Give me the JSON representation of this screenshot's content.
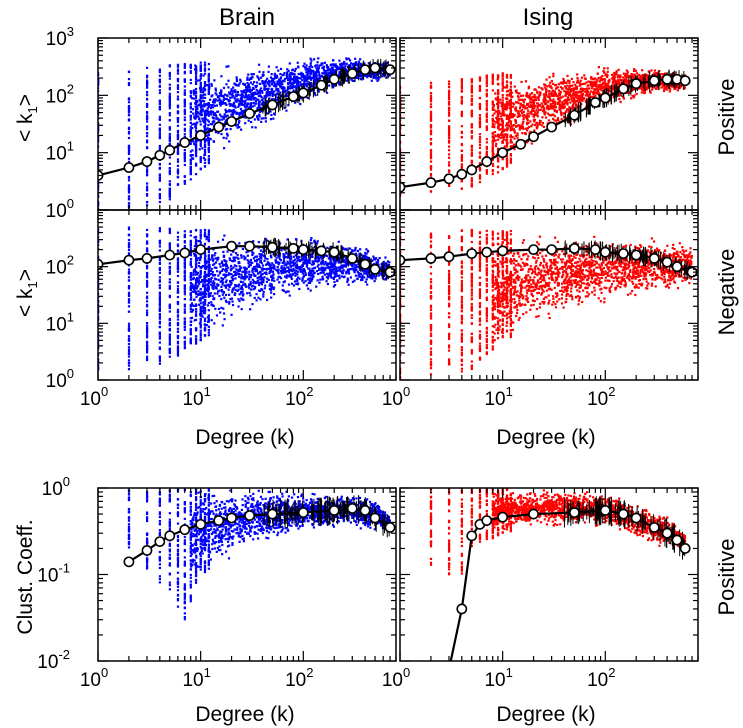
{
  "column_titles": [
    "Brain",
    "Ising"
  ],
  "row_labels": [
    "Positive",
    "Negative",
    "Positive"
  ],
  "y_labels": {
    "k1_main": "< k",
    "k1_sub": "1",
    "k1_close": ">",
    "clust": "Clust. Coeff."
  },
  "x_label": "Degree (k)",
  "ticks": {
    "base": "10",
    "k1_y_exps": [
      "0",
      "1",
      "2",
      "3"
    ],
    "clust_y_exps": [
      "-2",
      "-1",
      "0"
    ],
    "x_exps": [
      "0",
      "1",
      "2"
    ]
  },
  "colors": {
    "brain": "#0000ff",
    "ising": "#ff0000",
    "mean": "#000000",
    "marker_fill": "#ffffff"
  },
  "chart_data": [
    {
      "type": "scatter",
      "panel": "Brain / Positive",
      "title": "Brain",
      "row_label": "Positive",
      "xlabel": "",
      "ylabel": "< k1 >",
      "xscale": "log",
      "yscale": "log",
      "xlim": [
        1,
        800
      ],
      "ylim": [
        1,
        1000
      ],
      "series": [
        {
          "role": "scatter",
          "color": "#0000ff",
          "cloud": {
            "x_min": 1,
            "x_max": 700,
            "lower": [
              [
                2,
                1
              ],
              [
                5,
                1.5
              ],
              [
                10,
                5
              ],
              [
                30,
                20
              ],
              [
                100,
                60
              ],
              [
                300,
                150
              ],
              [
                700,
                180
              ]
            ],
            "upper": [
              [
                1,
                250
              ],
              [
                5,
                350
              ],
              [
                10,
                400
              ],
              [
                30,
                400
              ],
              [
                100,
                500
              ],
              [
                300,
                500
              ],
              [
                700,
                400
              ]
            ]
          }
        },
        {
          "role": "mean",
          "color": "#000000",
          "x": [
            1,
            2,
            3,
            4,
            5,
            7,
            10,
            15,
            20,
            30,
            50,
            80,
            100,
            150,
            200,
            300,
            400,
            500,
            700
          ],
          "y": [
            4,
            5.5,
            7,
            9,
            11,
            15,
            20,
            28,
            35,
            48,
            68,
            95,
            110,
            150,
            190,
            240,
            280,
            300,
            280
          ]
        }
      ]
    },
    {
      "type": "scatter",
      "panel": "Ising / Positive",
      "title": "Ising",
      "row_label": "Positive",
      "xlabel": "",
      "ylabel": "",
      "xscale": "log",
      "yscale": "log",
      "xlim": [
        1,
        800
      ],
      "ylim": [
        1,
        1000
      ],
      "series": [
        {
          "role": "scatter",
          "color": "#ff0000",
          "cloud": {
            "x_min": 1,
            "x_max": 600,
            "lower": [
              [
                1,
                1.5
              ],
              [
                5,
                2.5
              ],
              [
                10,
                5
              ],
              [
                30,
                20
              ],
              [
                100,
                60
              ],
              [
                300,
                100
              ],
              [
                600,
                120
              ]
            ],
            "upper": [
              [
                1,
                150
              ],
              [
                5,
                200
              ],
              [
                10,
                250
              ],
              [
                30,
                300
              ],
              [
                100,
                350
              ],
              [
                300,
                300
              ],
              [
                600,
                250
              ]
            ]
          }
        },
        {
          "role": "mean",
          "color": "#000000",
          "x": [
            1,
            2,
            3,
            4,
            5,
            7,
            10,
            15,
            20,
            30,
            50,
            80,
            100,
            150,
            200,
            300,
            400,
            500,
            600
          ],
          "y": [
            2.5,
            3,
            3.5,
            4.2,
            5,
            7,
            10,
            14,
            19,
            28,
            45,
            75,
            90,
            130,
            160,
            180,
            190,
            190,
            180
          ]
        }
      ]
    },
    {
      "type": "scatter",
      "panel": "Brain / Negative",
      "title": "",
      "row_label": "Negative",
      "xlabel": "Degree (k)",
      "ylabel": "< k1 >",
      "xscale": "log",
      "yscale": "log",
      "xlim": [
        1,
        800
      ],
      "ylim": [
        1,
        1000
      ],
      "series": [
        {
          "role": "scatter",
          "color": "#0000ff",
          "cloud": {
            "x_min": 1,
            "x_max": 700,
            "lower": [
              [
                2,
                1.5
              ],
              [
                5,
                2
              ],
              [
                10,
                5
              ],
              [
                30,
                15
              ],
              [
                100,
                30
              ],
              [
                300,
                40
              ],
              [
                700,
                50
              ]
            ],
            "upper": [
              [
                1,
                500
              ],
              [
                5,
                500
              ],
              [
                10,
                450
              ],
              [
                30,
                450
              ],
              [
                100,
                400
              ],
              [
                300,
                300
              ],
              [
                700,
                150
              ]
            ]
          }
        },
        {
          "role": "mean",
          "color": "#000000",
          "x": [
            1,
            2,
            3,
            5,
            7,
            10,
            20,
            30,
            50,
            80,
            100,
            150,
            200,
            300,
            400,
            500,
            700
          ],
          "y": [
            110,
            130,
            140,
            160,
            175,
            200,
            230,
            230,
            220,
            210,
            200,
            190,
            180,
            140,
            110,
            90,
            80
          ]
        }
      ]
    },
    {
      "type": "scatter",
      "panel": "Ising / Negative",
      "title": "",
      "row_label": "Negative",
      "xlabel": "Degree (k)",
      "ylabel": "",
      "xscale": "log",
      "yscale": "log",
      "xlim": [
        1,
        800
      ],
      "ylim": [
        1,
        1000
      ],
      "series": [
        {
          "role": "scatter",
          "color": "#ff0000",
          "cloud": {
            "x_min": 1,
            "x_max": 700,
            "lower": [
              [
                1,
                1
              ],
              [
                5,
                1.5
              ],
              [
                10,
                5
              ],
              [
                30,
                10
              ],
              [
                100,
                20
              ],
              [
                300,
                30
              ],
              [
                700,
                40
              ]
            ],
            "upper": [
              [
                1,
                450
              ],
              [
                5,
                450
              ],
              [
                10,
                450
              ],
              [
                30,
                450
              ],
              [
                100,
                400
              ],
              [
                300,
                350
              ],
              [
                700,
                300
              ]
            ]
          }
        },
        {
          "role": "mean",
          "color": "#000000",
          "x": [
            1,
            2,
            3,
            5,
            7,
            10,
            20,
            30,
            50,
            80,
            100,
            150,
            200,
            300,
            400,
            500,
            700
          ],
          "y": [
            130,
            140,
            150,
            170,
            180,
            190,
            200,
            200,
            210,
            200,
            180,
            170,
            160,
            140,
            120,
            100,
            80
          ]
        }
      ]
    },
    {
      "type": "scatter",
      "panel": "Brain / Clustering",
      "title": "",
      "row_label": "",
      "xlabel": "Degree (k)",
      "ylabel": "Clust. Coeff.",
      "xscale": "log",
      "yscale": "log",
      "xlim": [
        1,
        800
      ],
      "ylim": [
        0.01,
        1
      ],
      "series": [
        {
          "role": "scatter",
          "color": "#0000ff",
          "cloud": {
            "x_min": 2,
            "x_max": 700,
            "lower": [
              [
                2,
                0.2
              ],
              [
                5,
                0.06
              ],
              [
                7,
                0.03
              ],
              [
                10,
                0.1
              ],
              [
                30,
                0.2
              ],
              [
                100,
                0.3
              ],
              [
                300,
                0.35
              ],
              [
                700,
                0.3
              ]
            ],
            "upper": [
              [
                2,
                1
              ],
              [
                10,
                1
              ],
              [
                50,
                1
              ],
              [
                200,
                0.9
              ],
              [
                500,
                0.8
              ],
              [
                700,
                0.5
              ]
            ]
          }
        },
        {
          "role": "mean",
          "color": "#000000",
          "x": [
            2,
            3,
            4,
            5,
            7,
            10,
            15,
            20,
            30,
            50,
            100,
            200,
            300,
            400,
            500,
            700
          ],
          "y": [
            0.14,
            0.19,
            0.24,
            0.28,
            0.33,
            0.38,
            0.42,
            0.45,
            0.48,
            0.5,
            0.52,
            0.55,
            0.58,
            0.55,
            0.45,
            0.35
          ]
        }
      ]
    },
    {
      "type": "scatter",
      "panel": "Ising / Clustering",
      "title": "",
      "row_label": "Positive",
      "xlabel": "Degree (k)",
      "ylabel": "",
      "xscale": "log",
      "yscale": "log",
      "xlim": [
        1,
        800
      ],
      "ylim": [
        0.01,
        1
      ],
      "series": [
        {
          "role": "scatter",
          "color": "#ff0000",
          "cloud": {
            "x_min": 2,
            "x_max": 600,
            "lower": [
              [
                4,
                0.1
              ],
              [
                5,
                0.2
              ],
              [
                10,
                0.3
              ],
              [
                30,
                0.35
              ],
              [
                100,
                0.35
              ],
              [
                300,
                0.2
              ],
              [
                600,
                0.2
              ]
            ],
            "upper": [
              [
                2,
                1
              ],
              [
                10,
                1
              ],
              [
                50,
                1
              ],
              [
                100,
                0.9
              ],
              [
                200,
                0.7
              ],
              [
                400,
                0.5
              ],
              [
                600,
                0.3
              ]
            ]
          }
        },
        {
          "role": "mean",
          "color": "#000000",
          "x": [
            3,
            4,
            5,
            6,
            7,
            10,
            20,
            50,
            100,
            150,
            200,
            300,
            400,
            500,
            600
          ],
          "y": [
            0.008,
            0.04,
            0.28,
            0.38,
            0.42,
            0.46,
            0.5,
            0.52,
            0.55,
            0.5,
            0.45,
            0.35,
            0.3,
            0.25,
            0.2
          ]
        }
      ]
    }
  ]
}
